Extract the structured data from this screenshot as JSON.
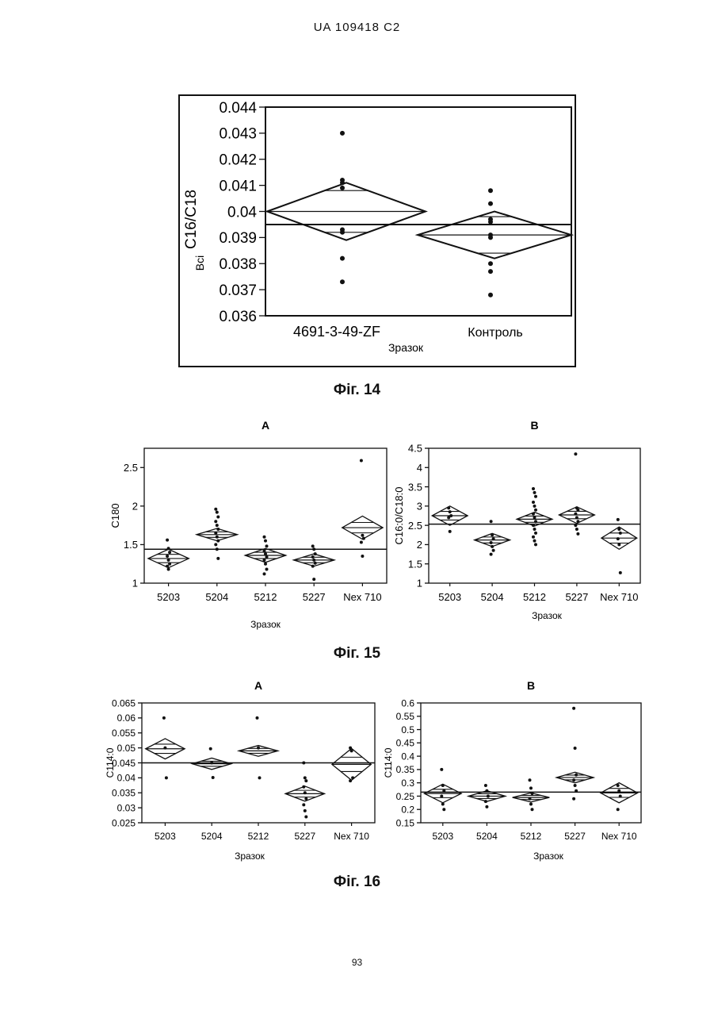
{
  "page": {
    "header": "UA   109418   C2",
    "page_number": "93",
    "fig14_caption": "Фіг. 14",
    "fig15_caption": "Фіг. 15",
    "fig16_caption": "Фіг. 16"
  },
  "chart_data": [
    {
      "id": "fig14",
      "type": "scatter",
      "title": "",
      "ylabel": "C16/C18",
      "ylabel_prefix": "Всі",
      "xlabel": "Зразок",
      "ylim": [
        0.036,
        0.044
      ],
      "yticks": [
        0.036,
        0.037,
        0.038,
        0.039,
        0.04,
        0.041,
        0.042,
        0.043,
        0.044
      ],
      "categories": [
        "4691-3-49-ZF",
        "Контроль"
      ],
      "grand_mean": 0.0395,
      "groups": [
        {
          "name": "4691-3-49-ZF",
          "mean": 0.04,
          "lower": 0.0389,
          "upper": 0.0411,
          "inner_low": 0.0392,
          "inner_high": 0.0408,
          "points": [
            0.043,
            0.0412,
            0.0411,
            0.0409,
            0.0393,
            0.0392,
            0.0382,
            0.0373
          ]
        },
        {
          "name": "Контроль",
          "mean": 0.0391,
          "lower": 0.0382,
          "upper": 0.04,
          "inner_low": 0.0384,
          "inner_high": 0.0398,
          "points": [
            0.0408,
            0.0403,
            0.0397,
            0.0396,
            0.0391,
            0.039,
            0.038,
            0.0377,
            0.0368
          ]
        }
      ]
    },
    {
      "id": "fig15a",
      "type": "scatter",
      "title": "A",
      "ylabel": "C180",
      "xlabel": "Зразок",
      "ylim": [
        1,
        2.75
      ],
      "yticks": [
        1,
        1.5,
        2,
        2.5
      ],
      "categories": [
        "5203",
        "5204",
        "5212",
        "5227",
        "Nex 710"
      ],
      "grand_mean": 1.44,
      "groups": [
        {
          "name": "5203",
          "mean": 1.32,
          "lower": 1.2,
          "upper": 1.44,
          "points": [
            1.56,
            1.45,
            1.4,
            1.35,
            1.3,
            1.25,
            1.22,
            1.18
          ]
        },
        {
          "name": "5204",
          "mean": 1.63,
          "lower": 1.55,
          "upper": 1.71,
          "points": [
            1.96,
            1.92,
            1.86,
            1.8,
            1.75,
            1.7,
            1.65,
            1.6,
            1.55,
            1.5,
            1.44,
            1.32
          ]
        },
        {
          "name": "5212",
          "mean": 1.36,
          "lower": 1.27,
          "upper": 1.45,
          "points": [
            1.6,
            1.55,
            1.48,
            1.42,
            1.38,
            1.34,
            1.3,
            1.25,
            1.18,
            1.12
          ]
        },
        {
          "name": "5227",
          "mean": 1.3,
          "lower": 1.22,
          "upper": 1.38,
          "points": [
            1.48,
            1.44,
            1.38,
            1.34,
            1.3,
            1.26,
            1.22,
            1.05
          ]
        },
        {
          "name": "Nex 710",
          "mean": 1.72,
          "lower": 1.57,
          "upper": 1.87,
          "points": [
            2.59,
            1.62,
            1.58,
            1.53,
            1.35
          ]
        }
      ]
    },
    {
      "id": "fig15b",
      "type": "scatter",
      "title": "B",
      "ylabel": "C16:0/C18:0",
      "xlabel": "Зразок",
      "ylim": [
        1,
        4.5
      ],
      "yticks": [
        1,
        1.5,
        2,
        2.5,
        3,
        3.5,
        4,
        4.5
      ],
      "categories": [
        "5203",
        "5204",
        "5212",
        "5227",
        "Nex 710"
      ],
      "grand_mean": 2.53,
      "groups": [
        {
          "name": "5203",
          "mean": 2.75,
          "lower": 2.5,
          "upper": 3.0,
          "points": [
            2.95,
            2.85,
            2.75,
            2.7,
            2.34
          ]
        },
        {
          "name": "5204",
          "mean": 2.12,
          "lower": 1.95,
          "upper": 2.29,
          "points": [
            2.6,
            2.25,
            2.15,
            2.05,
            1.95,
            1.85,
            1.75
          ]
        },
        {
          "name": "5212",
          "mean": 2.66,
          "lower": 2.48,
          "upper": 2.84,
          "points": [
            3.45,
            3.35,
            3.25,
            3.1,
            3.0,
            2.9,
            2.8,
            2.7,
            2.6,
            2.5,
            2.4,
            2.3,
            2.2,
            2.1,
            2.0
          ]
        },
        {
          "name": "5227",
          "mean": 2.77,
          "lower": 2.55,
          "upper": 2.98,
          "points": [
            4.35,
            2.95,
            2.9,
            2.8,
            2.7,
            2.6,
            2.5,
            2.4,
            2.28
          ]
        },
        {
          "name": "Nex 710",
          "mean": 2.17,
          "lower": 1.88,
          "upper": 2.46,
          "points": [
            2.65,
            2.4,
            2.3,
            2.15,
            2.0,
            1.27
          ]
        }
      ]
    },
    {
      "id": "fig16a",
      "type": "scatter",
      "title": "A",
      "ylabel": "C114:0",
      "xlabel": "Зразок",
      "ylim": [
        0.025,
        0.065
      ],
      "yticks": [
        0.025,
        0.03,
        0.035,
        0.04,
        0.045,
        0.05,
        0.055,
        0.06,
        0.065
      ],
      "categories": [
        "5203",
        "5204",
        "5212",
        "5227",
        "Nex 710"
      ],
      "grand_mean": 0.045,
      "groups": [
        {
          "name": "5203",
          "mean": 0.0497,
          "lower": 0.0463,
          "upper": 0.0531,
          "points": [
            0.06,
            0.05,
            0.04
          ]
        },
        {
          "name": "5204",
          "mean": 0.0447,
          "lower": 0.0428,
          "upper": 0.0466,
          "points": [
            0.0497,
            0.045,
            0.0401
          ]
        },
        {
          "name": "5212",
          "mean": 0.049,
          "lower": 0.0472,
          "upper": 0.0508,
          "points": [
            0.06,
            0.05,
            0.04
          ]
        },
        {
          "name": "5227",
          "mean": 0.0347,
          "lower": 0.0322,
          "upper": 0.0372,
          "points": [
            0.045,
            0.04,
            0.039,
            0.037,
            0.035,
            0.033,
            0.031,
            0.029,
            0.027
          ]
        },
        {
          "name": "Nex 710",
          "mean": 0.0445,
          "lower": 0.0392,
          "upper": 0.0498,
          "points": [
            0.05,
            0.049,
            0.04,
            0.039
          ]
        }
      ]
    },
    {
      "id": "fig16b",
      "type": "scatter",
      "title": "B",
      "ylabel": "C114:0",
      "xlabel": "Зразок",
      "ylim": [
        0.15,
        0.6
      ],
      "yticks": [
        0.15,
        0.2,
        0.25,
        0.3,
        0.35,
        0.4,
        0.45,
        0.5,
        0.55,
        0.6
      ],
      "categories": [
        "5203",
        "5204",
        "5212",
        "5227",
        "Nex 710"
      ],
      "grand_mean": 0.265,
      "groups": [
        {
          "name": "5203",
          "mean": 0.26,
          "lower": 0.225,
          "upper": 0.295,
          "points": [
            0.35,
            0.29,
            0.27,
            0.25,
            0.22,
            0.2
          ]
        },
        {
          "name": "5204",
          "mean": 0.25,
          "lower": 0.23,
          "upper": 0.27,
          "points": [
            0.29,
            0.27,
            0.25,
            0.23,
            0.21
          ]
        },
        {
          "name": "5212",
          "mean": 0.245,
          "lower": 0.228,
          "upper": 0.262,
          "points": [
            0.31,
            0.28,
            0.26,
            0.24,
            0.22,
            0.2
          ]
        },
        {
          "name": "5227",
          "mean": 0.32,
          "lower": 0.3,
          "upper": 0.34,
          "points": [
            0.58,
            0.43,
            0.33,
            0.31,
            0.29,
            0.27,
            0.24
          ]
        },
        {
          "name": "Nex 710",
          "mean": 0.262,
          "lower": 0.225,
          "upper": 0.3,
          "points": [
            0.29,
            0.27,
            0.25,
            0.2
          ]
        }
      ]
    }
  ]
}
